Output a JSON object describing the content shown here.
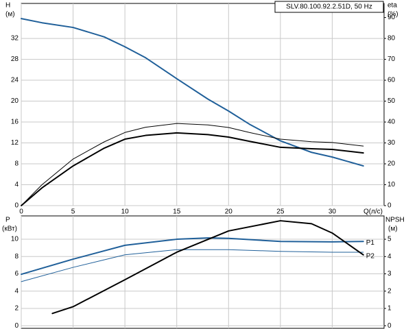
{
  "chart_data": [
    {
      "type": "line",
      "title": "SLV.80.100.92.2.51D, 50 Hz",
      "y_label": "H",
      "y_unit": "(м)",
      "y2_label": "eta",
      "y2_unit": "(%)",
      "x_label": "Q(л/с)",
      "xlim": [
        0,
        35
      ],
      "xticks": [
        0,
        5,
        10,
        15,
        20,
        25,
        30
      ],
      "show_xtick_labels": true,
      "ylim": [
        0,
        38.7
      ],
      "yticks": [
        0,
        4,
        8,
        12,
        16,
        20,
        24,
        28,
        32
      ],
      "y2lim": [
        0,
        96.75
      ],
      "y2ticks": [
        0,
        10,
        20,
        30,
        40,
        50,
        60,
        70,
        80,
        90
      ],
      "grid": true,
      "series": [
        {
          "color": "#1f5f99",
          "line_width": 2,
          "x": [
            0,
            2,
            5,
            8,
            10,
            12,
            15,
            18,
            20,
            22,
            25,
            28,
            30,
            33
          ],
          "values": [
            35.8,
            35.0,
            34.1,
            32.3,
            30.4,
            28.3,
            24.3,
            20.4,
            18.1,
            15.6,
            12.4,
            10.2,
            9.3,
            7.6
          ]
        },
        {
          "color": "#000000",
          "line_width": 1,
          "axis": "y2",
          "x": [
            0,
            2,
            5,
            8,
            10,
            12,
            15,
            18,
            20,
            22,
            25,
            28,
            30,
            33
          ],
          "values": [
            0,
            10,
            22.3,
            30.5,
            35,
            37.5,
            39.3,
            38.6,
            37.4,
            35,
            31.8,
            30.6,
            30.2,
            28.5
          ]
        },
        {
          "color": "#000000",
          "line_width": 2,
          "axis": "y2",
          "x": [
            0,
            2,
            5,
            8,
            10,
            12,
            15,
            18,
            20,
            22,
            25,
            28,
            30,
            33
          ],
          "values": [
            0,
            8.5,
            19,
            27.5,
            31.8,
            33.6,
            34.8,
            34,
            32.8,
            30.8,
            27.9,
            27.2,
            26.9,
            25.2
          ]
        }
      ]
    },
    {
      "type": "line",
      "y_label": "P",
      "y_unit": "(кВт)",
      "y2_label": "NPSH",
      "y2_unit": "(м)",
      "xlim": [
        0,
        35
      ],
      "xticks": [
        0,
        5,
        10,
        15,
        20,
        25,
        30
      ],
      "show_xtick_labels": false,
      "ylim": [
        -0.3,
        12.7
      ],
      "yticks": [
        0,
        2,
        4,
        6,
        8,
        10
      ],
      "y2lim": [
        -0.15,
        6.35
      ],
      "y2ticks": [
        0,
        1,
        2,
        3,
        4,
        5
      ],
      "grid": true,
      "series": [
        {
          "name": "P1",
          "color": "#1f5f99",
          "line_width": 2,
          "x": [
            0,
            5,
            10,
            15,
            18,
            20,
            25,
            30,
            33
          ],
          "values": [
            5.95,
            7.7,
            9.3,
            10.0,
            10.15,
            10.1,
            9.75,
            9.7,
            9.75
          ]
        },
        {
          "name": "P2",
          "color": "#1f5f99",
          "line_width": 1,
          "x": [
            0,
            5,
            10,
            15,
            20,
            25,
            30,
            33
          ],
          "values": [
            5.1,
            6.75,
            8.2,
            8.8,
            8.8,
            8.6,
            8.5,
            8.5
          ]
        },
        {
          "color": "#000000",
          "line_width": 2,
          "axis": "y2",
          "x": [
            3,
            5,
            10,
            15,
            20,
            25,
            28,
            30,
            33
          ],
          "values": [
            0.71,
            1.1,
            2.66,
            4.25,
            5.48,
            6.07,
            5.9,
            5.36,
            4.1
          ]
        }
      ]
    }
  ]
}
